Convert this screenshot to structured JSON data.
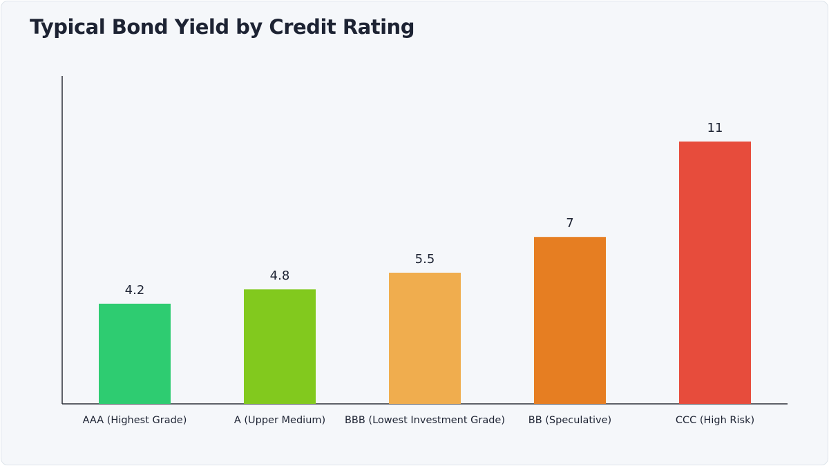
{
  "chart_data": {
    "type": "bar",
    "title": "Typical Bond Yield by Credit Rating",
    "xlabel": "",
    "ylabel": "",
    "categories": [
      "AAA (Highest Grade)",
      "A (Upper Medium)",
      "BBB (Lowest Investment Grade)",
      "BB (Speculative)",
      "CCC (High Risk)"
    ],
    "values": [
      4.2,
      4.8,
      5.5,
      7,
      11
    ],
    "value_labels": [
      "4.2",
      "4.8",
      "5.5",
      "7",
      "11"
    ],
    "colors": [
      "#2ecc71",
      "#82c91e",
      "#f0ad4e",
      "#e67e22",
      "#e74c3c"
    ],
    "ylim": [
      0,
      13.75
    ],
    "grid": false,
    "legend": "none"
  }
}
